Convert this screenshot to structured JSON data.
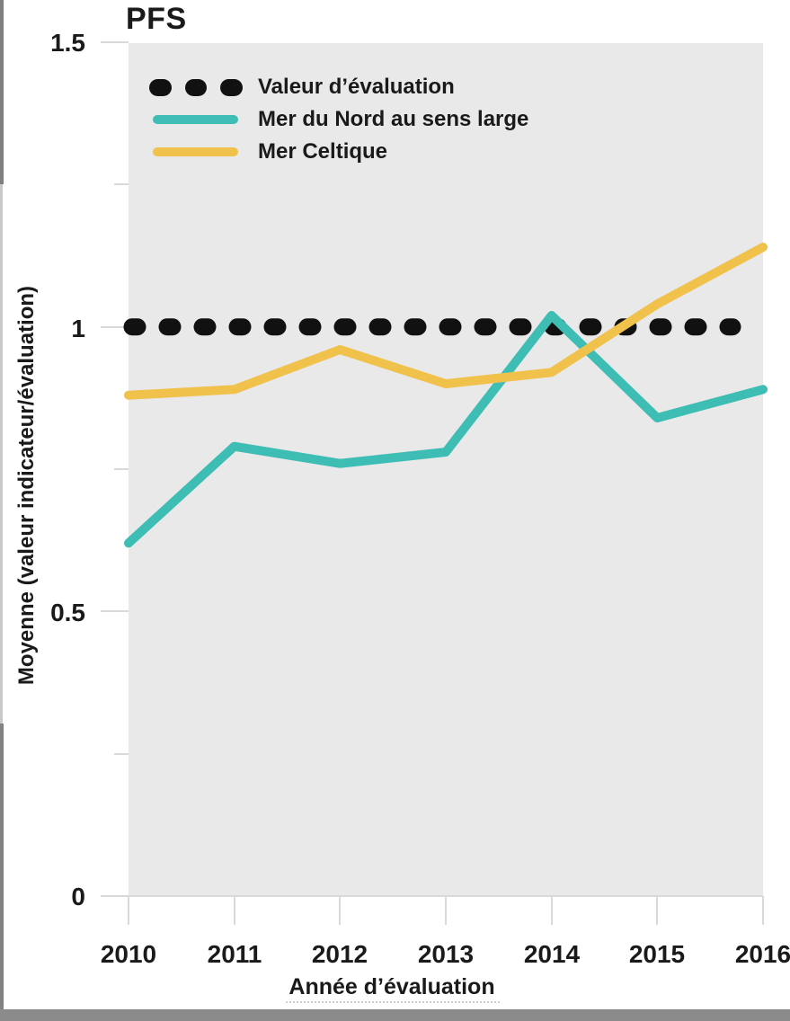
{
  "title": "PFS",
  "axes": {
    "y_label": "Moyenne (valeur indicateur/évaluation)",
    "x_label": "Année d’évaluation",
    "y_ticks": [
      "1.5",
      "1",
      "0.5",
      "0"
    ],
    "x_ticks": [
      "2010",
      "2011",
      "2012",
      "2013",
      "2014",
      "2015",
      "2016"
    ]
  },
  "legend": [
    {
      "label": "Valeur d’évaluation",
      "style": "dotted",
      "color": "#111111"
    },
    {
      "label": "Mer du Nord au sens large",
      "style": "solid",
      "color": "#3EBDB5"
    },
    {
      "label": "Mer Celtique",
      "style": "solid",
      "color": "#F0C14B"
    }
  ],
  "colors": {
    "assessment_value": "#111111",
    "mer_du_nord": "#3EBDB5",
    "mer_celtique": "#F0C14B",
    "plot_background": "#E9E9E9",
    "tick_lines": "#D9D9D9",
    "bottom_bar": "#8B8B8B"
  },
  "chart_data": {
    "type": "line",
    "title": "PFS",
    "xlabel": "Année d’évaluation",
    "ylabel": "Moyenne (valeur indicateur/évaluation)",
    "x": [
      2010,
      2011,
      2012,
      2013,
      2014,
      2015,
      2016
    ],
    "series": [
      {
        "name": "Valeur d’évaluation",
        "style": "dotted",
        "color": "#111111",
        "values": [
          1.0,
          1.0,
          1.0,
          1.0,
          1.0,
          1.0,
          1.0
        ]
      },
      {
        "name": "Mer du Nord au sens large",
        "style": "solid",
        "color": "#3EBDB5",
        "values": [
          0.62,
          0.79,
          0.76,
          0.78,
          1.02,
          0.84,
          0.89
        ]
      },
      {
        "name": "Mer Celtique",
        "style": "solid",
        "color": "#F0C14B",
        "values": [
          0.88,
          0.89,
          0.96,
          0.9,
          0.92,
          1.04,
          1.14
        ]
      }
    ],
    "ylim": [
      0,
      1.5
    ],
    "y_major_ticks": [
      0,
      0.5,
      1.0,
      1.5
    ],
    "y_minor_ticks": [
      0.25,
      0.75,
      1.25
    ],
    "grid": false,
    "legend_position": "top-left-inside",
    "plot_bg": "#E9E9E9"
  }
}
